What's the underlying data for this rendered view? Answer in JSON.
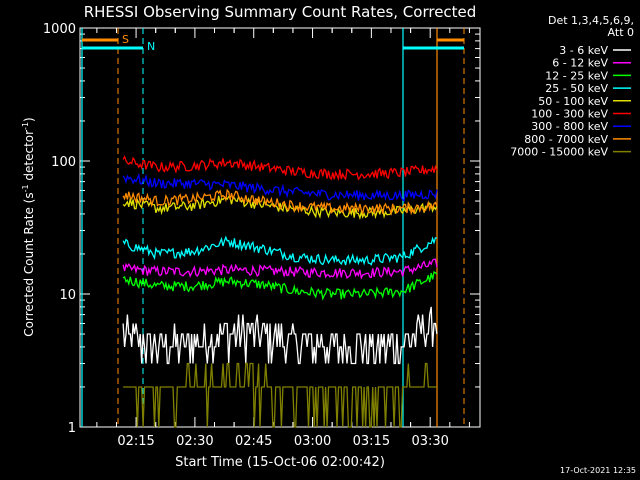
{
  "chart_data": {
    "type": "line",
    "title": "RHESSI Observing Summary Count Rates, Corrected",
    "xlabel": "Start Time (15-Oct-06 02:00:42)",
    "ylabel_main": "Corrected Count Rate (s",
    "ylabel_sup1": "-1",
    "ylabel_mid": " detector",
    "ylabel_sup2": "-1",
    "ylabel_end": ")",
    "yscale": "log",
    "ylim": [
      1,
      1000
    ],
    "xlim_minutes": [
      0,
      102
    ],
    "x_ticks": [
      {
        "label": "02:15",
        "min": 14.3
      },
      {
        "label": "02:30",
        "min": 29.3
      },
      {
        "label": "02:45",
        "min": 44.3
      },
      {
        "label": "03:00",
        "min": 59.3
      },
      {
        "label": "03:15",
        "min": 74.3
      },
      {
        "label": "03:30",
        "min": 89.3
      }
    ],
    "y_ticks": [
      {
        "label": "1",
        "v": 1
      },
      {
        "label": "10",
        "v": 10
      },
      {
        "label": "100",
        "v": 100
      },
      {
        "label": "1000",
        "v": 1000
      }
    ],
    "legend_header": [
      "Det 1,3,4,5,6,9,",
      "Att 0"
    ],
    "legend_placement": "right",
    "timestamp": "17-Oct-2021 12:35",
    "markers": [
      {
        "label": "S",
        "color": "#ff8c00"
      },
      {
        "label": "N",
        "color": "#00ffff"
      }
    ],
    "data_window_minutes": [
      11,
      91
    ],
    "series": [
      {
        "name": "3 - 6 keV",
        "color": "#ffffff",
        "values": [
          5.0,
          4.0,
          4.3,
          5.2,
          5.0,
          4.2,
          4.0,
          4.0,
          4.2,
          6.2
        ]
      },
      {
        "name": "6 - 12 keV",
        "color": "#ff00ff",
        "values": [
          15.5,
          14.8,
          14.8,
          15.2,
          15.0,
          14.7,
          14.5,
          14.5,
          14.8,
          17.0
        ]
      },
      {
        "name": "12 - 25 keV",
        "color": "#00ff00",
        "values": [
          13.0,
          11.5,
          11.5,
          12.5,
          11.8,
          10.5,
          10.0,
          10.0,
          10.5,
          14.0
        ]
      },
      {
        "name": "25 - 50 keV",
        "color": "#00ffff",
        "values": [
          24.0,
          20.0,
          21.0,
          25.0,
          22.0,
          19.0,
          18.0,
          18.0,
          19.0,
          26.0
        ]
      },
      {
        "name": "50 - 100 keV",
        "color": "#e0e000",
        "values": [
          50.0,
          44.0,
          46.0,
          52.0,
          47.0,
          43.0,
          41.0,
          41.0,
          42.0,
          46.0
        ]
      },
      {
        "name": "100 - 300 keV",
        "color": "#ff0000",
        "values": [
          100.0,
          90.0,
          92.0,
          98.0,
          90.0,
          83.0,
          80.0,
          80.0,
          82.0,
          88.0
        ]
      },
      {
        "name": "300 - 800 keV",
        "color": "#0000ff",
        "values": [
          76.0,
          68.0,
          68.0,
          66.0,
          62.0,
          58.0,
          56.0,
          55.0,
          55.0,
          57.0
        ]
      },
      {
        "name": "800 - 7000 keV",
        "color": "#ff8c00",
        "values": [
          56.0,
          50.0,
          52.0,
          56.0,
          50.0,
          46.0,
          44.0,
          44.0,
          44.0,
          46.0
        ]
      },
      {
        "name": "7000 - 15000 keV",
        "color": "#808000",
        "values": [
          2.4,
          1.8,
          2.0,
          2.2,
          2.0,
          1.9,
          1.8,
          1.8,
          1.9,
          2.3
        ]
      }
    ]
  }
}
